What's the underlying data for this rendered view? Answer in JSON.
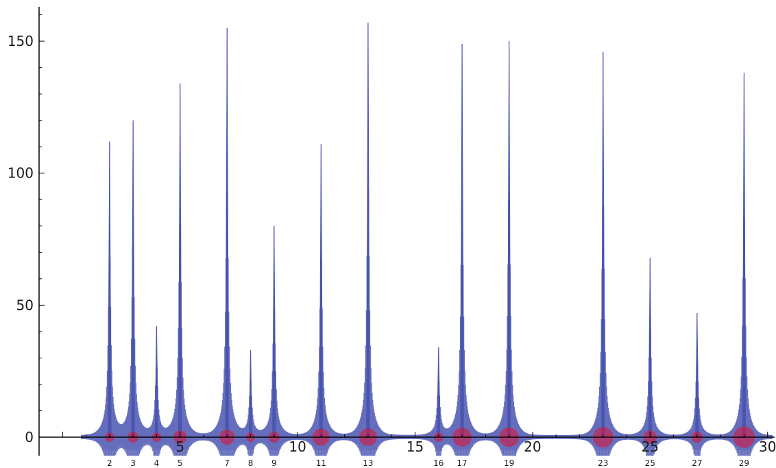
{
  "chart_data": {
    "type": "line",
    "title": "",
    "xlabel": "",
    "ylabel": "",
    "xlim": [
      -1,
      30.3
    ],
    "ylim": [
      -7,
      163
    ],
    "grid": false,
    "x_ticks": [
      5,
      10,
      15,
      20,
      25,
      30
    ],
    "y_ticks": [
      0,
      50,
      100,
      150
    ],
    "series": [
      {
        "color": "#4a55b0",
        "peaks": [
          {
            "x": 2,
            "y": 112
          },
          {
            "x": 3,
            "y": 120
          },
          {
            "x": 4,
            "y": 42
          },
          {
            "x": 5,
            "y": 134
          },
          {
            "x": 7,
            "y": 155
          },
          {
            "x": 8,
            "y": 33
          },
          {
            "x": 9,
            "y": 80
          },
          {
            "x": 11,
            "y": 111
          },
          {
            "x": 13,
            "y": 157
          },
          {
            "x": 16,
            "y": 34
          },
          {
            "x": 17,
            "y": 149
          },
          {
            "x": 19,
            "y": 150
          },
          {
            "x": 23,
            "y": 146
          },
          {
            "x": 25,
            "y": 68
          },
          {
            "x": 27,
            "y": 47
          },
          {
            "x": 29,
            "y": 138
          }
        ]
      }
    ],
    "prime_power_labels": [
      "2",
      "3",
      "4",
      "5",
      "7",
      "8",
      "9",
      "11",
      "13",
      "16",
      "17",
      "19",
      "23",
      "25",
      "27",
      "29"
    ],
    "markers": {
      "fill": "#e01030",
      "points": [
        {
          "x": 2,
          "weight": 0.69
        },
        {
          "x": 3,
          "weight": 1.1
        },
        {
          "x": 4,
          "weight": 0.69
        },
        {
          "x": 5,
          "weight": 1.61
        },
        {
          "x": 7,
          "weight": 1.95
        },
        {
          "x": 8,
          "weight": 0.69
        },
        {
          "x": 9,
          "weight": 1.1
        },
        {
          "x": 11,
          "weight": 2.4
        },
        {
          "x": 13,
          "weight": 2.56
        },
        {
          "x": 16,
          "weight": 0.69
        },
        {
          "x": 17,
          "weight": 2.83
        },
        {
          "x": 19,
          "weight": 2.94
        },
        {
          "x": 23,
          "weight": 3.14
        },
        {
          "x": 25,
          "weight": 1.61
        },
        {
          "x": 27,
          "weight": 1.1
        },
        {
          "x": 29,
          "weight": 3.37
        }
      ]
    }
  }
}
